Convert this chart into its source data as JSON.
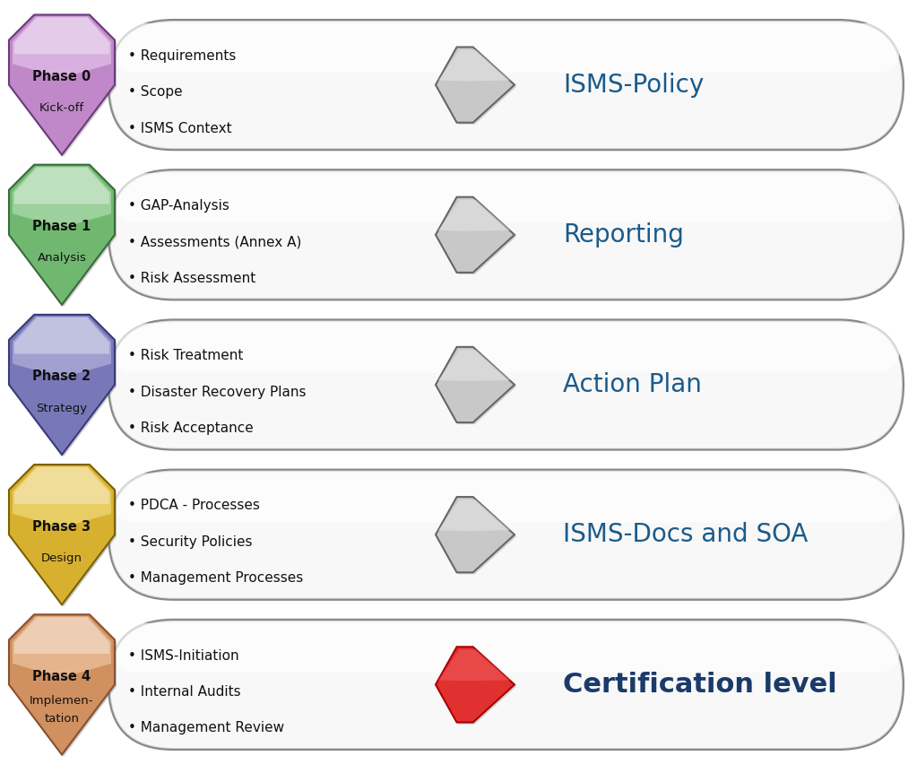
{
  "phases": [
    {
      "label_bold": "Phase 0",
      "label_normal": "Kick-off",
      "fill_color": "#c088c8",
      "fill_light": "#e0b0e8",
      "fill_lighter": "#f0d8f8",
      "color_border": "#6a3a7a",
      "bullet_items": [
        "Requirements",
        "Scope",
        "ISMS Context"
      ],
      "arrow_is_red": false,
      "output_text": "ISMS-Policy",
      "output_color": "#1a5a8a",
      "output_bold": false
    },
    {
      "label_bold": "Phase 1",
      "label_normal": "Analysis",
      "fill_color": "#70b870",
      "fill_light": "#98d098",
      "fill_lighter": "#c8e8c8",
      "color_border": "#3a6a3a",
      "bullet_items": [
        "GAP-Analysis",
        "Assessments (Annex A)",
        "Risk Assessment"
      ],
      "arrow_is_red": false,
      "output_text": "Reporting",
      "output_color": "#1a5a8a",
      "output_bold": false
    },
    {
      "label_bold": "Phase 2",
      "label_normal": "Strategy",
      "fill_color": "#7878b8",
      "fill_light": "#a0a0d0",
      "fill_lighter": "#c8c8e8",
      "color_border": "#3a3a7a",
      "bullet_items": [
        "Risk Treatment",
        "Disaster Recovery Plans",
        "Risk Acceptance"
      ],
      "arrow_is_red": false,
      "output_text": "Action Plan",
      "output_color": "#1a5a8a",
      "output_bold": false
    },
    {
      "label_bold": "Phase 3",
      "label_normal": "Design",
      "fill_color": "#d8b030",
      "fill_light": "#ecd060",
      "fill_lighter": "#f8e898",
      "color_border": "#7a6000",
      "bullet_items": [
        "PDCA - Processes",
        "Security Policies",
        "Management Processes"
      ],
      "arrow_is_red": false,
      "output_text": "ISMS-Docs and SOA",
      "output_color": "#1a5a8a",
      "output_bold": false
    },
    {
      "label_bold": "Phase 4",
      "label_normal": "Implemen-\ntation",
      "fill_color": "#d09060",
      "fill_light": "#e8b888",
      "fill_lighter": "#f8d8b8",
      "color_border": "#885030",
      "bullet_items": [
        "ISMS-Initiation",
        "Internal Audits",
        "Management Review"
      ],
      "arrow_is_red": true,
      "output_text": "Certification level",
      "output_color": "#1a3a6a",
      "output_bold": true
    }
  ],
  "bg_color": "#ffffff",
  "box_border_color": "#888888",
  "box_face_light": "#f8f8f8",
  "box_face_dark": "#d0d0d0"
}
